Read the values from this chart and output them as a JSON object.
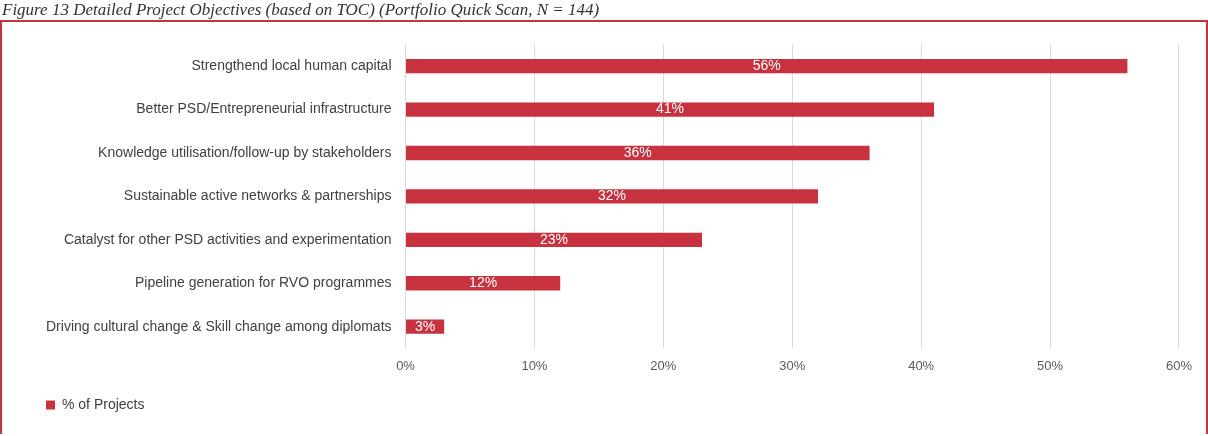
{
  "chart_data": {
    "type": "bar",
    "orientation": "horizontal",
    "title": "Figure 13 Detailed Project Objectives (based on TOC) (Portfolio Quick Scan, N = 144)",
    "categories": [
      "Strengthend local human capital",
      "Better PSD/Entrepreneurial infrastructure",
      "Knowledge utilisation/follow-up by stakeholders",
      "Sustainable active networks & partnerships",
      "Catalyst for other PSD activities and experimentation",
      "Pipeline generation for RVO programmes",
      "Driving cultural change & Skill change among diplomats"
    ],
    "series": [
      {
        "name": "% of Projects",
        "color": "#c8323f",
        "values": [
          56,
          41,
          36,
          32,
          23,
          12,
          3
        ],
        "value_labels": [
          "56%",
          "41%",
          "36%",
          "32%",
          "23%",
          "12%",
          "3%"
        ]
      }
    ],
    "xlim": [
      0,
      60
    ],
    "xticks": [
      {
        "value": 0,
        "label": "0%"
      },
      {
        "value": 10,
        "label": "10%"
      },
      {
        "value": 20,
        "label": "20%"
      },
      {
        "value": 30,
        "label": "30%"
      },
      {
        "value": 40,
        "label": "40%"
      },
      {
        "value": 50,
        "label": "50%"
      },
      {
        "value": 60,
        "label": "60%"
      }
    ],
    "grid": "x",
    "legend": "bottom left"
  }
}
